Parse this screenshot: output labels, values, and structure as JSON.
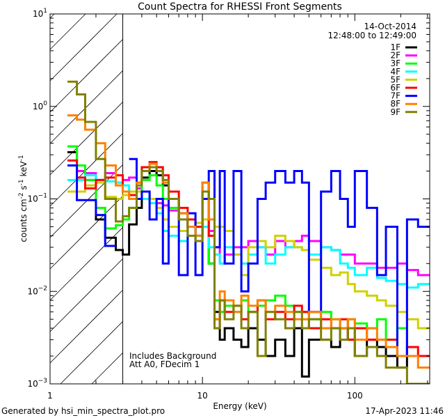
{
  "chart_data": {
    "type": "line",
    "title": "Count Spectra for RHESSI Front Segments",
    "xlabel": "Energy (keV)",
    "ylabel": {
      "base": "counts cm",
      "exp1": "-2",
      "mid": " s",
      "exp2": "-1",
      "unit": " keV",
      "exp3": "-1"
    },
    "xscale": "log",
    "yscale": "log",
    "xlim": [
      1,
      310
    ],
    "ylim": [
      0.001,
      10
    ],
    "xticks": [
      {
        "value": 1,
        "label": "1"
      },
      {
        "value": 10,
        "label": "10"
      },
      {
        "value": 100,
        "label": "100"
      }
    ],
    "yticks": [
      {
        "value": 0.001,
        "base": "10",
        "exp": "−3"
      },
      {
        "value": 0.01,
        "base": "10",
        "exp": "−2"
      },
      {
        "value": 0.1,
        "base": "10",
        "exp": "−1"
      },
      {
        "value": 1,
        "base": "10",
        "exp": "0"
      },
      {
        "value": 10,
        "base": "10",
        "exp": "1"
      }
    ],
    "hatched_region_keV": [
      1,
      3
    ],
    "date": "14-Oct-2014",
    "time_range": "12:48:00 to 12:49:00",
    "annotations": [
      "Includes Background",
      "Att A0, FDecim 1"
    ],
    "legend_position": "top-right",
    "bin_edges": [
      1.3,
      1.5,
      1.7,
      2.0,
      2.3,
      2.7,
      3.0,
      3.3,
      3.7,
      4.0,
      4.5,
      5.0,
      5.5,
      6.0,
      7.0,
      8.0,
      9.0,
      10,
      11,
      12,
      13,
      14,
      16,
      18,
      20,
      23,
      26,
      30,
      35,
      40,
      45,
      50,
      60,
      70,
      80,
      90,
      100,
      120,
      140,
      160,
      190,
      220,
      260,
      310
    ],
    "series": [
      {
        "name": "1F",
        "color": "#000000",
        "values": [
          0.32,
          0.23,
          0.16,
          0.06,
          0.038,
          0.028,
          0.025,
          0.053,
          0.08,
          0.17,
          0.2,
          0.18,
          0.14,
          0.1,
          0.07,
          0.05,
          0.04,
          0.06,
          0.02,
          0.006,
          0.003,
          0.004,
          0.003,
          0.0025,
          0.004,
          0.003,
          0.002,
          0.003,
          0.002,
          0.004,
          0.0012,
          0.003,
          0.003,
          0.0025,
          0.004,
          0.003,
          0.002,
          0.003,
          0.0025,
          0.002,
          0.0015,
          0.002,
          0.002
        ]
      },
      {
        "name": "2F",
        "color": "#ff00ff",
        "values": [
          0.23,
          0.2,
          0.19,
          0.16,
          0.19,
          0.15,
          0.16,
          0.17,
          0.13,
          0.12,
          0.1,
          0.09,
          0.085,
          0.075,
          0.06,
          0.05,
          0.04,
          0.06,
          0.045,
          0.03,
          0.02,
          0.025,
          0.03,
          0.03,
          0.035,
          0.03,
          0.025,
          0.035,
          0.03,
          0.035,
          0.04,
          0.035,
          0.03,
          0.028,
          0.025,
          0.025,
          0.02,
          0.02,
          0.018,
          0.018,
          0.02,
          0.017,
          0.015
        ]
      },
      {
        "name": "3F",
        "color": "#00ff00",
        "values": [
          0.37,
          0.23,
          0.16,
          0.08,
          0.048,
          0.052,
          0.06,
          0.08,
          0.12,
          0.16,
          0.18,
          0.14,
          0.1,
          0.08,
          0.06,
          0.05,
          0.04,
          0.1,
          0.02,
          0.008,
          0.006,
          0.007,
          0.006,
          0.008,
          0.006,
          0.007,
          0.008,
          0.009,
          0.007,
          0.006,
          0.006,
          0.005,
          0.006,
          0.005,
          0.004,
          0.005,
          0.0045,
          0.004,
          0.005,
          0.003,
          0.004,
          0.002,
          0.002
        ]
      },
      {
        "name": "4F",
        "color": "#00ffff",
        "values": [
          0.16,
          0.16,
          0.18,
          0.16,
          0.155,
          0.15,
          0.14,
          0.11,
          0.1,
          0.1,
          0.09,
          0.07,
          0.045,
          0.04,
          0.035,
          0.05,
          0.04,
          0.05,
          0.03,
          0.025,
          0.02,
          0.03,
          0.025,
          0.02,
          0.025,
          0.03,
          0.02,
          0.025,
          0.03,
          0.03,
          0.028,
          0.025,
          0.03,
          0.028,
          0.02,
          0.018,
          0.015,
          0.018,
          0.014,
          0.013,
          0.012,
          0.011,
          0.012
        ]
      },
      {
        "name": "5F",
        "color": "#d0d000",
        "values": [
          0.12,
          0.12,
          0.14,
          0.15,
          0.105,
          0.1,
          0.11,
          0.12,
          0.12,
          0.12,
          0.1,
          0.08,
          0.06,
          0.05,
          0.045,
          0.05,
          0.055,
          0.06,
          0.04,
          0.05,
          0.05,
          0.045,
          0.025,
          0.015,
          0.03,
          0.035,
          0.03,
          0.04,
          0.035,
          0.03,
          0.028,
          0.022,
          0.018,
          0.015,
          0.016,
          0.012,
          0.01,
          0.009,
          0.008,
          0.007,
          0.006,
          0.005,
          0.004
        ]
      },
      {
        "name": "6F",
        "color": "#ff0000",
        "values": [
          0.26,
          0.17,
          0.13,
          0.16,
          0.17,
          0.18,
          0.12,
          0.11,
          0.15,
          0.22,
          0.25,
          0.22,
          0.18,
          0.12,
          0.08,
          0.06,
          0.05,
          0.15,
          0.04,
          0.005,
          0.008,
          0.006,
          0.007,
          0.005,
          0.006,
          0.008,
          0.005,
          0.006,
          0.005,
          0.007,
          0.006,
          0.004,
          0.005,
          0.004,
          0.005,
          0.003,
          0.004,
          0.003,
          0.003,
          0.003,
          0.002,
          0.0025,
          0.002
        ]
      },
      {
        "name": "7F",
        "color": "#0000ff",
        "values": [
          0.23,
          0.097,
          0.097,
          0.067,
          0.031,
          null,
          null,
          0.27,
          0.1,
          0.12,
          0.06,
          0.1,
          0.02,
          0.1,
          0.015,
          0.07,
          0.015,
          0.1,
          0.2,
          0.03,
          0.2,
          0.02,
          0.2,
          0.01,
          0.02,
          0.1,
          0.15,
          0.2,
          0.15,
          0.2,
          0.15,
          0.006,
          0.12,
          0.2,
          0.1,
          0.05,
          0.2,
          0.08,
          0.015,
          0.05,
          0.002,
          0.06,
          0.05
        ]
      },
      {
        "name": "8F",
        "color": "#ff8000",
        "values": [
          0.8,
          0.72,
          0.56,
          0.4,
          0.23,
          0.14,
          0.12,
          0.1,
          0.15,
          0.2,
          0.24,
          0.2,
          0.15,
          0.1,
          0.07,
          0.05,
          0.04,
          0.15,
          0.06,
          0.005,
          0.01,
          0.008,
          0.006,
          0.009,
          0.007,
          0.008,
          0.006,
          0.007,
          0.006,
          0.005,
          0.005,
          0.006,
          0.004,
          0.005,
          0.004,
          0.005,
          0.003,
          0.004,
          0.003,
          0.0025,
          0.002,
          0.002,
          0.0015
        ]
      },
      {
        "name": "9F",
        "color": "#808000",
        "values": [
          1.85,
          1.35,
          0.68,
          0.27,
          0.1,
          0.057,
          0.065,
          0.08,
          0.14,
          0.2,
          0.22,
          0.2,
          0.16,
          0.1,
          0.06,
          0.04,
          0.035,
          0.12,
          0.1,
          0.004,
          0.008,
          0.005,
          0.007,
          0.004,
          0.006,
          0.002,
          0.006,
          0.005,
          0.004,
          0.006,
          0.004,
          0.005,
          0.003,
          0.004,
          0.003,
          0.004,
          0.002,
          0.0025,
          0.002,
          0.0015,
          0.0015,
          0.001,
          0.001
        ]
      }
    ]
  },
  "footer": {
    "generated_by": "Generated by hsi_min_spectra_plot.pro",
    "timestamp": "17-Apr-2023 11:46"
  }
}
